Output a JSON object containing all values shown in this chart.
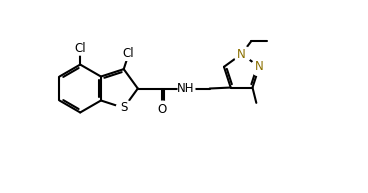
{
  "background_color": "#ffffff",
  "line_color": "#000000",
  "N_color": "#8B7000",
  "line_width": 1.5,
  "font_size": 8.5,
  "figsize": [
    3.68,
    1.93
  ],
  "dpi": 100,
  "xlim": [
    -0.5,
    10.5
  ],
  "ylim": [
    -0.5,
    5.5
  ]
}
